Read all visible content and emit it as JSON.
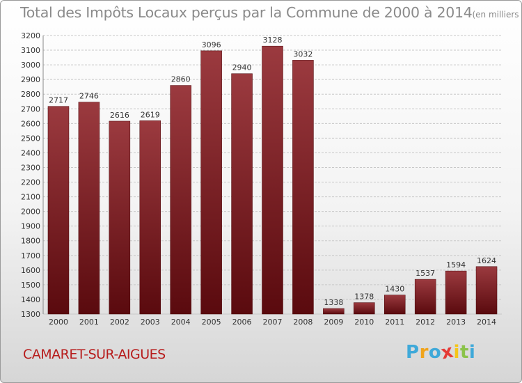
{
  "title": {
    "main": "Total des Impôts Locaux perçus par la Commune de 2000 à 2014",
    "unit": "(en milliers d'€)"
  },
  "commune": "CAMARET-SUR-AIGUES",
  "logo": {
    "letters": [
      "P",
      "r",
      "o",
      "x",
      "i",
      "t",
      "i"
    ],
    "colors": [
      "#3fa9d9",
      "#f0a41c",
      "#3fa9d9",
      "#e53935",
      "#f5c518",
      "#8bc34a",
      "#3fa9d9"
    ]
  },
  "colors": {
    "bar_top": "#9b3a3f",
    "bar_bottom": "#5a0a0e",
    "grid": "#c8c8c8",
    "axis_text": "#333333",
    "title": "#8a8a8a",
    "commune": "#b71c1c"
  },
  "chart_data": {
    "type": "bar",
    "title": "Total des Impôts Locaux perçus par la Commune de 2000 à 2014",
    "xlabel": "",
    "ylabel": "",
    "ylim": [
      1300,
      3200
    ],
    "ytick_step": 100,
    "grid": true,
    "categories": [
      "2000",
      "2001",
      "2002",
      "2003",
      "2004",
      "2005",
      "2006",
      "2007",
      "2008",
      "2009",
      "2010",
      "2011",
      "2012",
      "2013",
      "2014"
    ],
    "values": [
      2717,
      2746,
      2616,
      2619,
      2860,
      3096,
      2940,
      3128,
      3032,
      1338,
      1378,
      1430,
      1537,
      1594,
      1624
    ]
  }
}
